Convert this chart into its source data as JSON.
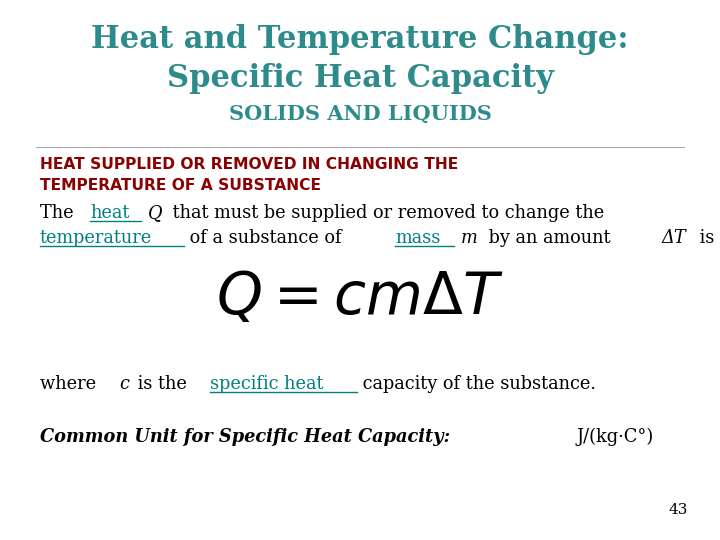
{
  "bg_color": "#ffffff",
  "title_line1": "Heat and Temperature Change:",
  "title_line2": "Specific Heat Capacity",
  "title_color": "#2e8b8b",
  "subtitle": "SOLIDS AND LIQUIDS",
  "subtitle_color": "#2e8b8b",
  "red_heading_line1": "HEAT SUPPLIED OR REMOVED IN CHANGING THE",
  "red_heading_line2": "TEMPERATURE OF A SUBSTANCE",
  "red_color": "#8b0000",
  "body_color": "#000000",
  "teal_color": "#008080",
  "page_number": "43",
  "figsize": [
    7.2,
    5.4
  ],
  "dpi": 100
}
